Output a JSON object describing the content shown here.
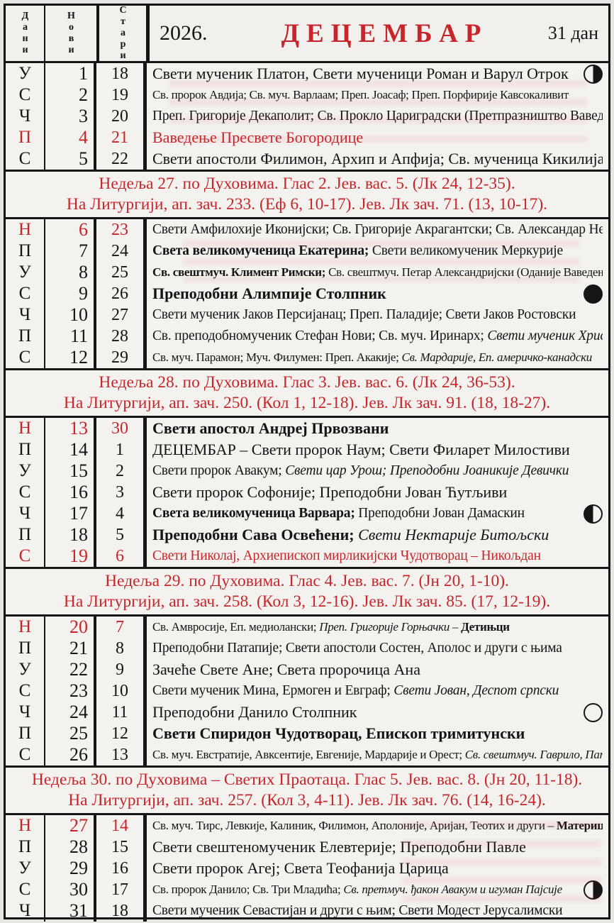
{
  "header": {
    "col_days": "Дани",
    "col_new": "Нови",
    "col_old": "Стари",
    "year": "2026.",
    "month": "ДЕЦЕМБАР",
    "days_count": "31 дан"
  },
  "colors": {
    "accent_red": "#c6262b",
    "ink_black": "#161514",
    "paper": "#f3f2ee"
  },
  "moon_legend": {
    "last-quarter": "moon-last-quarter-icon",
    "new": "moon-new-icon",
    "first-quarter": "moon-first-quarter-icon",
    "full": "moon-full-icon"
  },
  "sections": [
    {
      "type": "days",
      "rows": [
        {
          "dow": "У",
          "nd": "1",
          "od": "18",
          "size": "n",
          "moon": "last-quarter",
          "segments": [
            {
              "text": "Свети мученик Платон, Свети мученици Роман и Варул Отрок"
            }
          ]
        },
        {
          "dow": "С",
          "nd": "2",
          "od": "19",
          "size": "s",
          "segments": [
            {
              "text": "Св. пророк Авдија; Св. муч. Варлаам; Преп. Јоасаф; Преп. Порфирије Кавсокаливит"
            }
          ]
        },
        {
          "dow": "Ч",
          "nd": "3",
          "od": "20",
          "size": "m",
          "segments": [
            {
              "text": "Преп. Григорије Декаполит; Св. Прокло Цариградски (Претпразништво Ваведења)"
            }
          ]
        },
        {
          "dow": "П",
          "nd": "4",
          "od": "21",
          "size": "n",
          "red": "full",
          "segments": [
            {
              "text": "Ваведење Пресвете Богородице"
            }
          ]
        },
        {
          "dow": "С",
          "nd": "5",
          "od": "22",
          "size": "n",
          "segments": [
            {
              "text": "Свети апостоли Филимон, Архип и Апфија; Св. мученица Кикилија"
            }
          ]
        }
      ]
    },
    {
      "type": "note",
      "line1": "Недеља 27. по Духовима. Глас 2. Јев. вас. 5. (Лк 24, 12-35).",
      "line2": "На Литургији, ап. зач. 233. (Еф 6, 10-17). Јев. Лк зач. 71. (13, 10-17)."
    },
    {
      "type": "days",
      "rows": [
        {
          "dow": "Н",
          "nd": "6",
          "od": "23",
          "size": "m",
          "red": "nums",
          "segments": [
            {
              "text": "Свети Амфилохије Иконијски; Св. Григорије Акрагантски; Св. Александар Невски"
            }
          ]
        },
        {
          "dow": "П",
          "nd": "7",
          "od": "24",
          "size": "m",
          "segments": [
            {
              "text": "Света великомученица Екатерина;",
              "bold": true
            },
            {
              "text": " Свети великомученик Меркурије"
            }
          ]
        },
        {
          "dow": "У",
          "nd": "8",
          "od": "25",
          "size": "s",
          "segments": [
            {
              "text": "Св. свештмуч. Климент Римски;",
              "bold": true
            },
            {
              "text": " Св. свештмуч. Петар Александријски (Оданије Ваведења)"
            }
          ]
        },
        {
          "dow": "С",
          "nd": "9",
          "od": "26",
          "size": "n",
          "moon": "new",
          "segments": [
            {
              "text": "Преподобни Алимпије Столпник",
              "bold": true
            }
          ]
        },
        {
          "dow": "Ч",
          "nd": "10",
          "od": "27",
          "size": "m",
          "segments": [
            {
              "text": "Свети мученик Јаков Персијанац; Преп. Паладије; Свети Јаков Ростовски"
            }
          ]
        },
        {
          "dow": "П",
          "nd": "11",
          "od": "28",
          "size": "m",
          "segments": [
            {
              "text": "Св. преподобномученик Стефан Нови; Св. муч. Иринарх; "
            },
            {
              "text": "Свети мученик Христо",
              "italic": true
            }
          ]
        },
        {
          "dow": "С",
          "nd": "12",
          "od": "29",
          "size": "s",
          "segments": [
            {
              "text": "Св. муч. Парамон; Муч. Филумен: Преп. Акакије; "
            },
            {
              "text": "Св. Мардарије, Еп. америчко-канадски",
              "italic": true
            }
          ]
        }
      ]
    },
    {
      "type": "note",
      "line1": "Недеља 28. по Духовима. Глас 3. Јев. вас. 6. (Лк 24, 36-53).",
      "line2": "На Литургији, ап. зач. 250. (Кол 1, 12-18). Јев. Лк зач. 91. (18, 18-27)."
    },
    {
      "type": "days",
      "rows": [
        {
          "dow": "Н",
          "nd": "13",
          "od": "30",
          "size": "n",
          "red": "nums",
          "segments": [
            {
              "text": "Свети апостол Андреј Првозвани",
              "bold": true
            }
          ]
        },
        {
          "dow": "П",
          "nd": "14",
          "od": "1",
          "size": "n",
          "segments": [
            {
              "text": "ДЕЦЕМБАР – Свети пророк Наум; Свети Филарет Милостиви"
            }
          ]
        },
        {
          "dow": "У",
          "nd": "15",
          "od": "2",
          "size": "m",
          "segments": [
            {
              "text": "Свети пророк Авакум; "
            },
            {
              "text": "Свети цар Урош; Преподобни Јоаникије Девички",
              "italic": true
            }
          ]
        },
        {
          "dow": "С",
          "nd": "16",
          "od": "3",
          "size": "n",
          "segments": [
            {
              "text": "Свети пророк Софоније; Преподобни Јован Ћутљиви"
            }
          ]
        },
        {
          "dow": "Ч",
          "nd": "17",
          "od": "4",
          "size": "m",
          "moon": "first-quarter",
          "segments": [
            {
              "text": "Света великомученица Варвара;",
              "bold": true
            },
            {
              "text": " Преподобни Јован Дамаскин"
            }
          ]
        },
        {
          "dow": "П",
          "nd": "18",
          "od": "5",
          "size": "n",
          "segments": [
            {
              "text": "Преподобни Сава Освећени;",
              "bold": true
            },
            {
              "text": " Свети Нектарије Битољски",
              "italic": true
            }
          ]
        },
        {
          "dow": "С",
          "nd": "19",
          "od": "6",
          "size": "m",
          "red": "full",
          "segments": [
            {
              "text": "Свети Николај, Архиепископ мирликијски Чудотворац – Никољдан"
            }
          ]
        }
      ]
    },
    {
      "type": "note",
      "line1": "Недеља 29. по Духовима. Глас 4. Јев. вас. 7. (Јн 20, 1-10).",
      "line2": "На Литургији, ап. зач. 258. (Кол 3, 12-16). Јев. Лк зач. 85. (17, 12-19)."
    },
    {
      "type": "days",
      "rows": [
        {
          "dow": "Н",
          "nd": "20",
          "od": "7",
          "size": "s",
          "red": "nums",
          "segments": [
            {
              "text": "Св. Амвросије, Еп. медиолански; "
            },
            {
              "text": "Преп. Григорије Горњачки",
              "italic": true
            },
            {
              "text": " – "
            },
            {
              "text": "Детињци",
              "bold": true
            }
          ]
        },
        {
          "dow": "П",
          "nd": "21",
          "od": "8",
          "size": "m",
          "segments": [
            {
              "text": "Преподобни Патапије; Свети апостоли Состен, Аполос и други с њима"
            }
          ]
        },
        {
          "dow": "У",
          "nd": "22",
          "od": "9",
          "size": "n",
          "segments": [
            {
              "text": "Зачеће Свете Ане; Света пророчица Ана"
            }
          ]
        },
        {
          "dow": "С",
          "nd": "23",
          "od": "10",
          "size": "m",
          "segments": [
            {
              "text": "Свети мученик Мина, Ермоген и Евграф; "
            },
            {
              "text": "Свети Јован, Деспот српски",
              "italic": true
            }
          ]
        },
        {
          "dow": "Ч",
          "nd": "24",
          "od": "11",
          "size": "n",
          "moon": "full",
          "segments": [
            {
              "text": "Преподобни Данило Столпник"
            }
          ]
        },
        {
          "dow": "П",
          "nd": "25",
          "od": "12",
          "size": "n",
          "segments": [
            {
              "text": "Свети Спиридон Чудотворац, Епископ тримитунски",
              "bold": true
            }
          ]
        },
        {
          "dow": "С",
          "nd": "26",
          "od": "13",
          "size": "s",
          "segments": [
            {
              "text": "Св. муч. Евстратије, Авксентије, Евгеније, Мардарије и Орест; "
            },
            {
              "text": "Св. свештмуч. Гаврило, Патријарх српски",
              "italic": true
            }
          ]
        }
      ]
    },
    {
      "type": "note",
      "line1": "Недеља 30. по Духовима – Светих Праотаца. Глас 5. Јев. вас. 8. (Јн 20, 11-18).",
      "line2": "На Литургији, ап. зач. 257. (Кол 3, 4-11). Јев. Лк зач. 76. (14, 16-24)."
    },
    {
      "type": "days",
      "rows": [
        {
          "dow": "Н",
          "nd": "27",
          "od": "14",
          "size": "s",
          "red": "nums",
          "segments": [
            {
              "text": "Св. муч. Тирс, Левкије, Калиник, Филимон, Аполоније, Аријан, Теотих и други – "
            },
            {
              "text": "Материце",
              "bold": true
            }
          ]
        },
        {
          "dow": "П",
          "nd": "28",
          "od": "15",
          "size": "n",
          "segments": [
            {
              "text": "Свети свештеномученик Елевтерије; Преподобни Павле"
            }
          ]
        },
        {
          "dow": "У",
          "nd": "29",
          "od": "16",
          "size": "n",
          "segments": [
            {
              "text": "Свети пророк Агеј; Света Теофанија Царица"
            }
          ]
        },
        {
          "dow": "С",
          "nd": "30",
          "od": "17",
          "size": "s",
          "moon": "last-quarter",
          "segments": [
            {
              "text": "Св. пророк Данило; Св. Три Младића; "
            },
            {
              "text": "Св. претмуч. ђакон Авакум и игуман Пајсије",
              "italic": true
            }
          ]
        },
        {
          "dow": "Ч",
          "nd": "31",
          "od": "18",
          "size": "m",
          "segments": [
            {
              "text": "Свети мученик Севастијан и други с њим; Свети Модест Јерусалимски"
            }
          ]
        }
      ]
    }
  ]
}
